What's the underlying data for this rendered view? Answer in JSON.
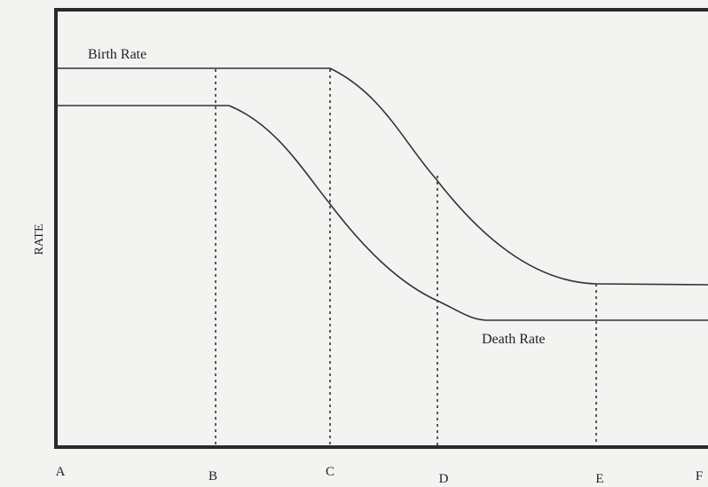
{
  "labels": {
    "birth_rate": "Birth Rate",
    "death_rate": "Death Rate",
    "y_axis": "RATE"
  },
  "stages": [
    "A",
    "B",
    "C",
    "D",
    "E",
    "F"
  ]
}
